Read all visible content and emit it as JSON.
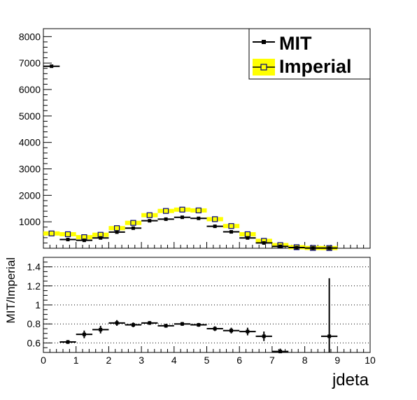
{
  "chart_data": [
    {
      "type": "scatter",
      "title": "",
      "xlabel": "",
      "ylabel": "",
      "xlim": [
        0,
        10
      ],
      "ylim": [
        0,
        8300
      ],
      "x_tick_labels": [],
      "y_tick_labels": [
        "1000",
        "2000",
        "3000",
        "4000",
        "5000",
        "6000",
        "7000",
        "8000"
      ],
      "bin_width": 0.5,
      "legend": {
        "placement": "top-right"
      },
      "series": [
        {
          "name": "MIT",
          "color": "#000000",
          "marker": "filled-square",
          "x": [
            0.25,
            0.75,
            1.25,
            1.75,
            2.25,
            2.75,
            3.25,
            3.75,
            4.25,
            4.75,
            5.25,
            5.75,
            6.25,
            6.75,
            7.25,
            7.75,
            8.25,
            8.75,
            9.25,
            9.75
          ],
          "y": [
            6880,
            330,
            300,
            390,
            610,
            760,
            1040,
            1100,
            1170,
            1130,
            830,
            620,
            390,
            200,
            70,
            25,
            8,
            5,
            0,
            0
          ]
        },
        {
          "name": "Imperial",
          "color": "#000080",
          "band_color": "#ffff00",
          "marker": "open-square",
          "x": [
            0.25,
            0.75,
            1.25,
            1.75,
            2.25,
            2.75,
            3.25,
            3.75,
            4.25,
            4.75,
            5.25,
            5.75,
            6.25,
            6.75,
            7.25,
            7.75,
            8.25,
            8.75,
            9.25,
            9.75
          ],
          "y": [
            560,
            530,
            420,
            510,
            760,
            960,
            1250,
            1410,
            1460,
            1430,
            1100,
            840,
            530,
            280,
            120,
            40,
            12,
            8,
            0,
            0
          ]
        }
      ]
    },
    {
      "type": "scatter",
      "title": "",
      "xlabel": "jdeta",
      "ylabel": "MIT/Imperial",
      "xlim": [
        0,
        10
      ],
      "ylim": [
        0.5,
        1.5
      ],
      "x_tick_labels": [
        "0",
        "1",
        "2",
        "3",
        "4",
        "5",
        "6",
        "7",
        "8",
        "9",
        "10"
      ],
      "y_tick_labels": [
        "0.6",
        "0.8",
        "1",
        "1.2",
        "1.4"
      ],
      "grid": "horizontal dotted",
      "series": [
        {
          "name": "",
          "color": "#000000",
          "marker": "filled-square",
          "x": [
            0.75,
            1.25,
            1.75,
            2.25,
            2.75,
            3.25,
            3.75,
            4.25,
            4.75,
            5.25,
            5.75,
            6.25,
            6.75,
            7.25,
            8.75
          ],
          "y": [
            0.61,
            0.69,
            0.74,
            0.81,
            0.79,
            0.81,
            0.78,
            0.8,
            0.79,
            0.75,
            0.73,
            0.72,
            0.67,
            0.51,
            0.67
          ],
          "yerr": [
            0.02,
            0.04,
            0.04,
            0.03,
            0.025,
            0.02,
            0.02,
            0.02,
            0.02,
            0.025,
            0.03,
            0.04,
            0.05,
            0.03,
            0.61
          ]
        }
      ]
    }
  ]
}
